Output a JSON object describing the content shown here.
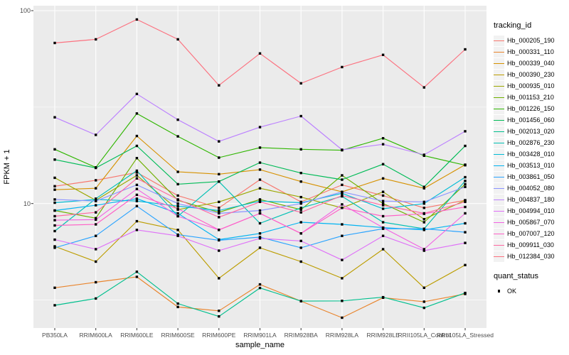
{
  "chart_data": {
    "type": "line",
    "title": "",
    "xlabel": "sample_name",
    "ylabel": "FPKM + 1",
    "legend_title": "tracking_id",
    "quant_legend_title": "quant_status",
    "quant_legend_items": [
      {
        "label": "OK",
        "marker": "black-square"
      }
    ],
    "y_axis": {
      "scale": "log10",
      "ticks": [
        {
          "label": "100",
          "value": 100
        },
        {
          "label": "10",
          "value": 10
        }
      ],
      "minor_gridline_values": [
        31.62,
        3.162
      ],
      "range": [
        2.26,
        106
      ],
      "grid": "on"
    },
    "categories": [
      "PB350LA",
      "RRIM600LA",
      "RRIM600LE",
      "RRIM600SE",
      "RRIM600PE",
      "RRIM901LA",
      "RRIM928BA",
      "RRIM928LA",
      "RRIM928LE",
      "RRII105LA_Control",
      "RRII105LA_Stressed"
    ],
    "legend_position": "right",
    "marker": {
      "shape": "square",
      "color": "#000000",
      "size": 3.4
    },
    "series": [
      {
        "name": "Hb_000205_190",
        "color": "#F8766D",
        "values": [
          12.3,
          13.2,
          14.5,
          11.0,
          9.5,
          13.3,
          10.2,
          12.5,
          11.0,
          9.5,
          10.4
        ]
      },
      {
        "name": "Hb_000331_110",
        "color": "#E9842C",
        "values": [
          3.66,
          3.91,
          4.17,
          2.91,
          2.78,
          3.81,
          3.12,
          2.56,
          3.25,
          3.1,
          3.4
        ]
      },
      {
        "name": "Hb_000339_040",
        "color": "#D69100",
        "values": [
          11.8,
          12.0,
          22.4,
          14.6,
          14.2,
          15.0,
          13.0,
          11.5,
          13.5,
          12.0,
          15.9
        ]
      },
      {
        "name": "Hb_000390_230",
        "color": "#BC9D00",
        "values": [
          6.0,
          5.0,
          8.1,
          7.3,
          4.1,
          5.9,
          5.0,
          4.1,
          5.8,
          3.66,
          4.8
        ]
      },
      {
        "name": "Hb_000935_010",
        "color": "#9CA700",
        "values": [
          13.6,
          10.4,
          14.0,
          9.3,
          10.2,
          12.0,
          10.8,
          9.5,
          11.5,
          8.3,
          10.4
        ]
      },
      {
        "name": "Hb_001153_210",
        "color": "#6FB000",
        "values": [
          9.2,
          8.4,
          17.2,
          10.4,
          9.0,
          10.5,
          9.3,
          14.0,
          10.0,
          8.0,
          12.6
        ]
      },
      {
        "name": "Hb_001226_150",
        "color": "#2FB600",
        "values": [
          19.1,
          15.4,
          29.3,
          22.3,
          17.3,
          19.5,
          19.1,
          18.9,
          21.8,
          17.7,
          15.8
        ]
      },
      {
        "name": "Hb_001456_060",
        "color": "#00BB57",
        "values": [
          16.9,
          15.3,
          19.9,
          12.6,
          13.0,
          16.3,
          14.4,
          13.3,
          16.0,
          12.2,
          19.9
        ]
      },
      {
        "name": "Hb_002013_020",
        "color": "#00BF8D",
        "values": [
          2.97,
          3.22,
          4.43,
          3.03,
          2.6,
          3.65,
          3.12,
          3.13,
          3.27,
          2.88,
          3.44
        ]
      },
      {
        "name": "Hb_002876_230",
        "color": "#00C0B4",
        "values": [
          7.2,
          10.6,
          14.8,
          8.6,
          13.0,
          7.9,
          9.5,
          10.9,
          8.0,
          7.4,
          13.1
        ]
      },
      {
        "name": "Hb_003428_010",
        "color": "#00BCD6",
        "values": [
          10.1,
          10.5,
          10.3,
          9.7,
          9.2,
          10.3,
          10.1,
          11.3,
          9.4,
          10.0,
          13.7
        ]
      },
      {
        "name": "Hb_003513_010",
        "color": "#00B3F2",
        "values": [
          9.2,
          9.8,
          10.6,
          8.9,
          6.5,
          7.0,
          8.0,
          7.8,
          7.5,
          7.3,
          7.9
        ]
      },
      {
        "name": "Hb_003861_050",
        "color": "#29A3FF",
        "values": [
          5.9,
          6.8,
          9.7,
          6.9,
          6.45,
          6.7,
          5.9,
          6.8,
          7.4,
          7.4,
          7.1
        ]
      },
      {
        "name": "Hb_004052_080",
        "color": "#8B93FF",
        "values": [
          10.5,
          10.3,
          12.5,
          10.0,
          8.9,
          9.2,
          10.0,
          11.5,
          10.3,
          10.2,
          12.2
        ]
      },
      {
        "name": "Hb_004837_180",
        "color": "#BC81FF",
        "values": [
          28.0,
          22.7,
          37.0,
          27.2,
          21.0,
          24.9,
          28.4,
          19.0,
          20.3,
          17.9,
          23.7
        ]
      },
      {
        "name": "Hb_004994_010",
        "color": "#DF70F8",
        "values": [
          6.5,
          5.8,
          7.3,
          6.8,
          5.7,
          6.6,
          6.4,
          5.1,
          6.8,
          5.7,
          6.25
        ]
      },
      {
        "name": "Hb_005867_070",
        "color": "#F263E3",
        "values": [
          8.2,
          8.25,
          11.9,
          8.6,
          7.3,
          8.9,
          7.0,
          9.9,
          7.5,
          5.8,
          8.9
        ]
      },
      {
        "name": "Hb_007007_120",
        "color": "#FF61C7",
        "values": [
          7.7,
          7.8,
          11.1,
          9.4,
          7.3,
          8.9,
          7.0,
          9.5,
          8.6,
          8.85,
          9.6
        ]
      },
      {
        "name": "Hb_009911_030",
        "color": "#FF68A1",
        "values": [
          8.6,
          9.0,
          13.5,
          10.5,
          8.5,
          10.2,
          9.0,
          11.0,
          9.8,
          8.9,
          10.2
        ]
      },
      {
        "name": "Hb_012384_030",
        "color": "#FC717F",
        "values": [
          68,
          71,
          90,
          71,
          41,
          60,
          42,
          51,
          59,
          40,
          63
        ]
      }
    ]
  },
  "style": {
    "figure_bg": "#FFFFFF",
    "panel_bg": "#EBEBEB",
    "grid_color": "#FFFFFF",
    "tick_mark_color": "#333333",
    "tick_label_color": "#4D4D4D",
    "axis_title_color": "#000000",
    "legend_key_bg": "#F2F2F2",
    "marker_color": "#000000"
  }
}
